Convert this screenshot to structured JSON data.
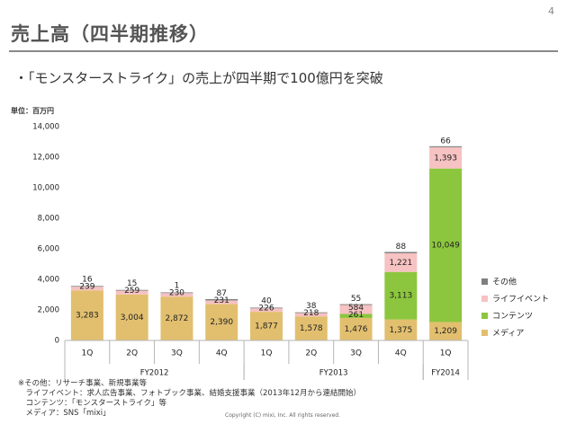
{
  "page": {
    "number": "4",
    "title": "売上高（四半期推移）",
    "bullet": "・「モンスターストライク」の売上が四半期で100億円を突破",
    "unit": "単位：百万円",
    "footnotes": [
      "※その他：リサーチ事業、新規事業等",
      "　ライフイベント：求人広告事業、フォトブック事業、結婚支援事業（2013年12月から連結開始）",
      "　コンテンツ：「モンスターストライク」等",
      "　メディア：SNS「mixi」"
    ],
    "copyright": "Copyright (C) mixi, Inc. All rights reserved."
  },
  "chart_data": {
    "type": "bar",
    "stacked": true,
    "categories": [
      "1Q",
      "2Q",
      "3Q",
      "4Q",
      "1Q",
      "2Q",
      "3Q",
      "4Q",
      "1Q"
    ],
    "groups": [
      {
        "label": "FY2012",
        "from": 0,
        "to": 3
      },
      {
        "label": "FY2013",
        "from": 4,
        "to": 7
      },
      {
        "label": "FY2014",
        "from": 8,
        "to": 8
      }
    ],
    "ylim": [
      0,
      14000
    ],
    "yticks": [
      0,
      2000,
      4000,
      6000,
      8000,
      10000,
      12000,
      14000
    ],
    "ytick_labels": [
      "0",
      "2,000",
      "4,000",
      "6,000",
      "8,000",
      "10,000",
      "12,000",
      "14,000"
    ],
    "series": [
      {
        "name": "メディア",
        "color": "#e2bf6f",
        "values": [
          3283,
          3004,
          2872,
          2390,
          1877,
          1578,
          1476,
          1375,
          1209
        ],
        "labels": [
          "3,283",
          "3,004",
          "2,872",
          "2,390",
          "1,877",
          "1,578",
          "1,476",
          "1,375",
          "1,209"
        ]
      },
      {
        "name": "コンテンツ",
        "color": "#8cc63e",
        "values": [
          0,
          0,
          0,
          0,
          0,
          0,
          261,
          3113,
          10049
        ],
        "labels": [
          "",
          "",
          "",
          "",
          "",
          "",
          "261",
          "3,113",
          "10,049"
        ]
      },
      {
        "name": "ライフイベント",
        "color": "#f6c2c2",
        "values": [
          239,
          259,
          230,
          231,
          226,
          218,
          584,
          1221,
          1393
        ],
        "labels": [
          "239",
          "259",
          "230",
          "231",
          "226",
          "218",
          "584",
          "1,221",
          "1,393"
        ]
      },
      {
        "name": "その他",
        "color": "#7f7f7f",
        "values": [
          16,
          15,
          1,
          87,
          40,
          38,
          55,
          88,
          66
        ],
        "labels": [
          "16",
          "15",
          "1",
          "87",
          "40",
          "38",
          "55",
          "88",
          "66"
        ]
      }
    ],
    "legend_order": [
      "その他",
      "ライフイベント",
      "コンテンツ",
      "メディア"
    ],
    "legend_position": "right",
    "grid": false
  }
}
